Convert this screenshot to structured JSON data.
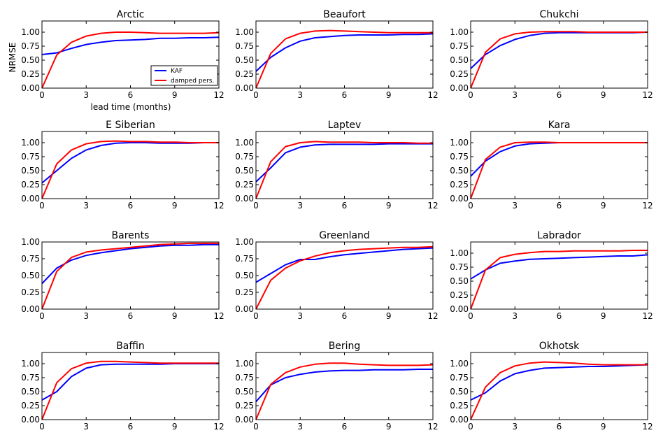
{
  "figure": {
    "ylabel": "NRMSE",
    "xlabel": "lead time (months)",
    "legend": {
      "kaf": "KAF",
      "damped": "damped pers."
    },
    "colors": {
      "kaf": "#0000ff",
      "damped": "#ff0000"
    }
  },
  "chart_data": [
    {
      "type": "line",
      "title": "Arctic",
      "x": [
        0,
        1,
        2,
        3,
        4,
        5,
        6,
        7,
        8,
        9,
        10,
        11,
        12
      ],
      "xticks": [
        0,
        3,
        6,
        9,
        12
      ],
      "yticks": [
        "0.00",
        "0.25",
        "0.50",
        "0.75",
        "1.00"
      ],
      "ylim": [
        0,
        1.2
      ],
      "series": [
        {
          "name": "KAF",
          "values": [
            0.6,
            0.63,
            0.71,
            0.78,
            0.82,
            0.85,
            0.86,
            0.87,
            0.89,
            0.89,
            0.9,
            0.9,
            0.91
          ]
        },
        {
          "name": "damped pers.",
          "values": [
            0.0,
            0.59,
            0.82,
            0.93,
            0.98,
            1.0,
            1.0,
            0.99,
            0.98,
            0.98,
            0.98,
            0.98,
            0.99
          ]
        }
      ]
    },
    {
      "type": "line",
      "title": "Beaufort",
      "x": [
        0,
        1,
        2,
        3,
        4,
        5,
        6,
        7,
        8,
        9,
        10,
        11,
        12
      ],
      "xticks": [
        0,
        3,
        6,
        9,
        12
      ],
      "yticks": [
        "0.00",
        "0.25",
        "0.50",
        "0.75",
        "1.00"
      ],
      "ylim": [
        0,
        1.2
      ],
      "series": [
        {
          "name": "KAF",
          "values": [
            0.3,
            0.55,
            0.72,
            0.84,
            0.9,
            0.92,
            0.94,
            0.95,
            0.95,
            0.95,
            0.96,
            0.96,
            0.97
          ]
        },
        {
          "name": "damped pers.",
          "values": [
            0.0,
            0.62,
            0.88,
            0.98,
            1.02,
            1.03,
            1.02,
            1.01,
            1.0,
            0.99,
            0.99,
            0.99,
            0.99
          ]
        }
      ]
    },
    {
      "type": "line",
      "title": "Chukchi",
      "x": [
        0,
        1,
        2,
        3,
        4,
        5,
        6,
        7,
        8,
        9,
        10,
        11,
        12
      ],
      "xticks": [
        0,
        3,
        6,
        9,
        12
      ],
      "yticks": [
        "0.00",
        "0.25",
        "0.50",
        "0.75",
        "1.00"
      ],
      "ylim": [
        0,
        1.2
      ],
      "series": [
        {
          "name": "KAF",
          "values": [
            0.35,
            0.6,
            0.76,
            0.87,
            0.94,
            0.98,
            0.99,
            0.99,
            0.99,
            0.99,
            0.99,
            0.99,
            1.0
          ]
        },
        {
          "name": "damped pers.",
          "values": [
            0.0,
            0.64,
            0.88,
            0.97,
            1.0,
            1.01,
            1.01,
            1.01,
            1.0,
            1.0,
            1.0,
            1.0,
            1.0
          ]
        }
      ]
    },
    {
      "type": "line",
      "title": "E Siberian",
      "x": [
        0,
        1,
        2,
        3,
        4,
        5,
        6,
        7,
        8,
        9,
        10,
        11,
        12
      ],
      "xticks": [
        0,
        3,
        6,
        9,
        12
      ],
      "yticks": [
        "0.00",
        "0.25",
        "0.50",
        "0.75",
        "1.00"
      ],
      "ylim": [
        0,
        1.2
      ],
      "series": [
        {
          "name": "KAF",
          "values": [
            0.28,
            0.5,
            0.72,
            0.87,
            0.95,
            0.99,
            1.0,
            1.0,
            0.99,
            0.99,
            0.99,
            1.0,
            1.0
          ]
        },
        {
          "name": "damped pers.",
          "values": [
            0.0,
            0.62,
            0.87,
            0.98,
            1.02,
            1.03,
            1.02,
            1.02,
            1.01,
            1.01,
            1.0,
            1.0,
            1.0
          ]
        }
      ]
    },
    {
      "type": "line",
      "title": "Laptev",
      "x": [
        0,
        1,
        2,
        3,
        4,
        5,
        6,
        7,
        8,
        9,
        10,
        11,
        12
      ],
      "xticks": [
        0,
        3,
        6,
        9,
        12
      ],
      "yticks": [
        "0.00",
        "0.25",
        "0.50",
        "0.75",
        "1.00"
      ],
      "ylim": [
        0,
        1.2
      ],
      "series": [
        {
          "name": "KAF",
          "values": [
            0.3,
            0.55,
            0.82,
            0.92,
            0.96,
            0.97,
            0.97,
            0.97,
            0.97,
            0.98,
            0.98,
            0.98,
            0.98
          ]
        },
        {
          "name": "damped pers.",
          "values": [
            0.0,
            0.66,
            0.93,
            1.0,
            1.02,
            1.01,
            1.01,
            1.01,
            1.0,
            1.0,
            1.0,
            0.99,
            0.99
          ]
        }
      ]
    },
    {
      "type": "line",
      "title": "Kara",
      "x": [
        0,
        1,
        2,
        3,
        4,
        5,
        6,
        7,
        8,
        9,
        10,
        11,
        12
      ],
      "xticks": [
        0,
        3,
        6,
        9,
        12
      ],
      "yticks": [
        "0.00",
        "0.25",
        "0.50",
        "0.75",
        "1.00"
      ],
      "ylim": [
        0,
        1.2
      ],
      "series": [
        {
          "name": "KAF",
          "values": [
            0.4,
            0.67,
            0.84,
            0.94,
            0.98,
            0.99,
            1.0,
            1.0,
            1.0,
            1.0,
            1.0,
            1.0,
            1.0
          ]
        },
        {
          "name": "damped pers.",
          "values": [
            0.0,
            0.7,
            0.92,
            1.0,
            1.01,
            1.01,
            1.0,
            1.0,
            1.0,
            1.0,
            1.0,
            1.0,
            1.0
          ]
        }
      ]
    },
    {
      "type": "line",
      "title": "Barents",
      "x": [
        0,
        1,
        2,
        3,
        4,
        5,
        6,
        7,
        8,
        9,
        10,
        11,
        12
      ],
      "xticks": [
        0,
        3,
        6,
        9,
        12
      ],
      "yticks": [
        "0.00",
        "0.25",
        "0.50",
        "0.75",
        "1.00"
      ],
      "ylim": [
        0,
        1.0
      ],
      "series": [
        {
          "name": "KAF",
          "values": [
            0.38,
            0.61,
            0.73,
            0.8,
            0.84,
            0.87,
            0.9,
            0.92,
            0.94,
            0.95,
            0.95,
            0.96,
            0.96
          ]
        },
        {
          "name": "damped pers.",
          "values": [
            0.0,
            0.56,
            0.77,
            0.85,
            0.88,
            0.9,
            0.92,
            0.94,
            0.96,
            0.97,
            0.98,
            0.98,
            0.98
          ]
        }
      ]
    },
    {
      "type": "line",
      "title": "Greenland",
      "x": [
        0,
        1,
        2,
        3,
        4,
        5,
        6,
        7,
        8,
        9,
        10,
        11,
        12
      ],
      "xticks": [
        0,
        3,
        6,
        9,
        12
      ],
      "yticks": [
        "0.00",
        "0.25",
        "0.50",
        "0.75",
        "1.00"
      ],
      "ylim": [
        0,
        1.0
      ],
      "series": [
        {
          "name": "KAF",
          "values": [
            0.4,
            0.53,
            0.66,
            0.74,
            0.74,
            0.78,
            0.81,
            0.83,
            0.85,
            0.87,
            0.89,
            0.9,
            0.91
          ]
        },
        {
          "name": "damped pers.",
          "values": [
            0.0,
            0.43,
            0.61,
            0.72,
            0.79,
            0.84,
            0.87,
            0.89,
            0.9,
            0.91,
            0.92,
            0.92,
            0.93
          ]
        }
      ]
    },
    {
      "type": "line",
      "title": "Labrador",
      "x": [
        0,
        1,
        2,
        3,
        4,
        5,
        6,
        7,
        8,
        9,
        10,
        11,
        12
      ],
      "xticks": [
        0,
        3,
        6,
        9,
        12
      ],
      "yticks": [
        "0.00",
        "0.25",
        "0.50",
        "0.75",
        "1.00"
      ],
      "ylim": [
        0,
        1.2
      ],
      "series": [
        {
          "name": "KAF",
          "values": [
            0.54,
            0.7,
            0.82,
            0.86,
            0.89,
            0.9,
            0.91,
            0.92,
            0.93,
            0.94,
            0.95,
            0.95,
            0.97
          ]
        },
        {
          "name": "damped pers.",
          "values": [
            0.0,
            0.7,
            0.92,
            0.98,
            1.01,
            1.03,
            1.03,
            1.04,
            1.04,
            1.04,
            1.04,
            1.05,
            1.05
          ]
        }
      ]
    },
    {
      "type": "line",
      "title": "Baffin",
      "x": [
        0,
        1,
        2,
        3,
        4,
        5,
        6,
        7,
        8,
        9,
        10,
        11,
        12
      ],
      "xticks": [
        0,
        3,
        6,
        9,
        12
      ],
      "yticks": [
        "0.00",
        "0.25",
        "0.50",
        "0.75",
        "1.00"
      ],
      "ylim": [
        0,
        1.2
      ],
      "series": [
        {
          "name": "KAF",
          "values": [
            0.35,
            0.5,
            0.77,
            0.92,
            0.98,
            0.99,
            0.99,
            0.99,
            0.99,
            1.0,
            1.0,
            1.0,
            1.0
          ]
        },
        {
          "name": "damped pers.",
          "values": [
            0.0,
            0.66,
            0.91,
            1.01,
            1.04,
            1.04,
            1.03,
            1.02,
            1.01,
            1.01,
            1.01,
            1.01,
            1.01
          ]
        }
      ]
    },
    {
      "type": "line",
      "title": "Bering",
      "x": [
        0,
        1,
        2,
        3,
        4,
        5,
        6,
        7,
        8,
        9,
        10,
        11,
        12
      ],
      "xticks": [
        0,
        3,
        6,
        9,
        12
      ],
      "yticks": [
        "0.00",
        "0.25",
        "0.50",
        "0.75",
        "1.00"
      ],
      "ylim": [
        0,
        1.2
      ],
      "series": [
        {
          "name": "KAF",
          "values": [
            0.32,
            0.62,
            0.75,
            0.81,
            0.85,
            0.87,
            0.88,
            0.88,
            0.89,
            0.89,
            0.89,
            0.9,
            0.9
          ]
        },
        {
          "name": "damped pers.",
          "values": [
            0.0,
            0.63,
            0.84,
            0.94,
            0.99,
            1.01,
            1.01,
            0.99,
            0.98,
            0.97,
            0.97,
            0.97,
            0.98
          ]
        }
      ]
    },
    {
      "type": "line",
      "title": "Okhotsk",
      "x": [
        0,
        1,
        2,
        3,
        4,
        5,
        6,
        7,
        8,
        9,
        10,
        11,
        12
      ],
      "xticks": [
        0,
        3,
        6,
        9,
        12
      ],
      "yticks": [
        "0.00",
        "0.25",
        "0.50",
        "0.75",
        "1.00"
      ],
      "ylim": [
        0,
        1.2
      ],
      "series": [
        {
          "name": "KAF",
          "values": [
            0.35,
            0.48,
            0.69,
            0.82,
            0.88,
            0.92,
            0.93,
            0.94,
            0.95,
            0.95,
            0.96,
            0.97,
            0.98
          ]
        },
        {
          "name": "damped pers.",
          "values": [
            0.0,
            0.58,
            0.84,
            0.96,
            1.01,
            1.03,
            1.02,
            1.01,
            0.99,
            0.98,
            0.98,
            0.98,
            0.98
          ]
        }
      ]
    }
  ]
}
